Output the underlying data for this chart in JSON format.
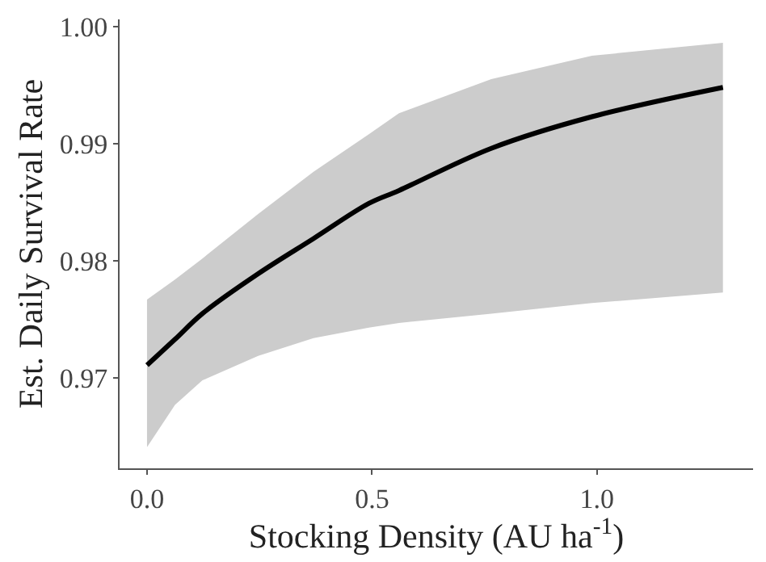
{
  "chart_data": {
    "type": "line",
    "xlabel": "Stocking Density (AU ha$^{-1}$)",
    "ylabel": "Est. Daily Survival Rate",
    "x": [
      0,
      0.062,
      0.123,
      0.247,
      0.37,
      0.493,
      0.56,
      0.765,
      0.989,
      1.28
    ],
    "series": [
      {
        "color": "#000000",
        "values": [
          0.9711,
          0.9733,
          0.9755,
          0.9789,
          0.9819,
          0.9849,
          0.986,
          0.9896,
          0.9923,
          0.9948
        ],
        "lower": [
          0.9641,
          0.9677,
          0.9698,
          0.9719,
          0.9734,
          0.9743,
          0.9747,
          0.9755,
          0.9764,
          0.9773
        ],
        "upper": [
          0.9767,
          0.9784,
          0.9802,
          0.984,
          0.9876,
          0.9908,
          0.9926,
          0.9955,
          0.9975,
          0.9986
        ]
      }
    ],
    "xlim": [
      -0.061,
      1.347
    ],
    "ylim": [
      0.9623,
      1.0006
    ],
    "xticks": [
      {
        "value": 0,
        "label": "0.0"
      },
      {
        "value": 0.5,
        "label": "0.5"
      },
      {
        "value": 1,
        "label": "1.0"
      }
    ],
    "yticks": [
      {
        "value": 0.97,
        "label": "0.97"
      },
      {
        "value": 0.98,
        "label": "0.98"
      },
      {
        "value": 0.99,
        "label": "0.99"
      },
      {
        "value": 1,
        "label": "1.00"
      }
    ],
    "grid": false
  }
}
